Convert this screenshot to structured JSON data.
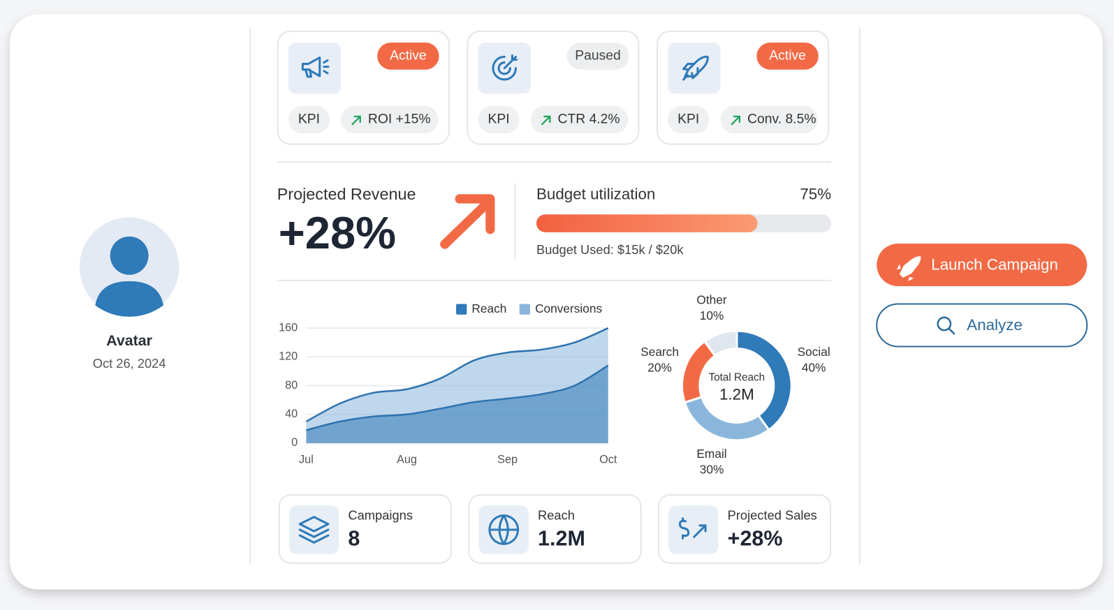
{
  "profile": {
    "name": "Avatar",
    "date": "Oct 26, 2024"
  },
  "campaign_cards": [
    {
      "status": "Active",
      "status_color": "#f26a45",
      "kpi_label": "KPI",
      "metric": "ROI +15%"
    },
    {
      "status": "Paused",
      "status_color": "#eceef0",
      "kpi_label": "KPI",
      "metric": "CTR 4.2%"
    },
    {
      "status": "Active",
      "status_color": "#f26a45",
      "kpi_label": "KPI",
      "metric": "Conv. 8.5%"
    }
  ],
  "revenue": {
    "label": "Projected Revenue",
    "value": "+28%"
  },
  "budget": {
    "label": "Budget utilization",
    "percent": 75,
    "percent_label": "75%",
    "note": "Budget Used: $15k / $20k"
  },
  "chart_data": [
    {
      "type": "area",
      "categories": [
        "Jul",
        null,
        null,
        "Aug",
        null,
        null,
        "Sep",
        null,
        null,
        "Oct"
      ],
      "series": [
        {
          "name": "Reach",
          "color": "#2f7ab8",
          "values": [
            18,
            30,
            37,
            40,
            48,
            57,
            62,
            68,
            80,
            108
          ]
        },
        {
          "name": "Conversions",
          "color": "#8ab6dc",
          "values": [
            30,
            55,
            70,
            75,
            90,
            115,
            126,
            130,
            140,
            160
          ]
        }
      ],
      "ylim": [
        0,
        160
      ],
      "yticks": [
        0,
        40,
        80,
        120,
        160
      ],
      "grid": true
    },
    {
      "type": "donut",
      "center_label": "Total Reach",
      "center_value": "1.2M",
      "categories": [
        "Social",
        "Email",
        "Search",
        "Other"
      ],
      "values": [
        40,
        30,
        20,
        10
      ],
      "value_labels": [
        "40%",
        "30%",
        "20%",
        "10%"
      ],
      "colors": [
        "#2f7ab8",
        "#8ab6dc",
        "#f26a45",
        "#dfe6ee"
      ]
    }
  ],
  "stats": [
    {
      "label": "Campaigns",
      "value": "8"
    },
    {
      "label": "Reach",
      "value": "1.2M"
    },
    {
      "label": "Projected Sales",
      "value": "+28%"
    }
  ],
  "actions": {
    "primary": "Launch Campaign",
    "secondary": "Analyze"
  }
}
